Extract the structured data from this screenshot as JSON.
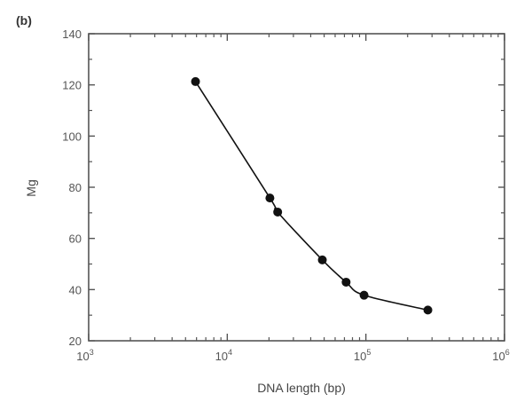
{
  "chart_data": {
    "type": "line",
    "panel_label": "(b)",
    "xlabel": "DNA length (bp)",
    "ylabel": "Mg",
    "x_scale": "log",
    "xlim": [
      1000,
      1000000
    ],
    "ylim": [
      20,
      140
    ],
    "x_ticks": [
      1000,
      10000,
      100000,
      1000000
    ],
    "x_tick_labels": [
      {
        "base": "10",
        "exp": "3"
      },
      {
        "base": "10",
        "exp": "4"
      },
      {
        "base": "10",
        "exp": "5"
      },
      {
        "base": "10",
        "exp": "6"
      }
    ],
    "y_ticks": [
      20,
      40,
      60,
      80,
      100,
      120,
      140
    ],
    "y_tick_labels": [
      "20",
      "40",
      "60",
      "80",
      "100",
      "120",
      "140"
    ],
    "grid": false,
    "series": [
      {
        "x": [
          5900,
          20300,
          23100,
          48500,
          72000,
          97000,
          280000
        ],
        "y": [
          121.3,
          75.8,
          70.3,
          51.6,
          42.9,
          37.8,
          32.0
        ],
        "color": "#111111",
        "marker": "circle"
      }
    ]
  }
}
